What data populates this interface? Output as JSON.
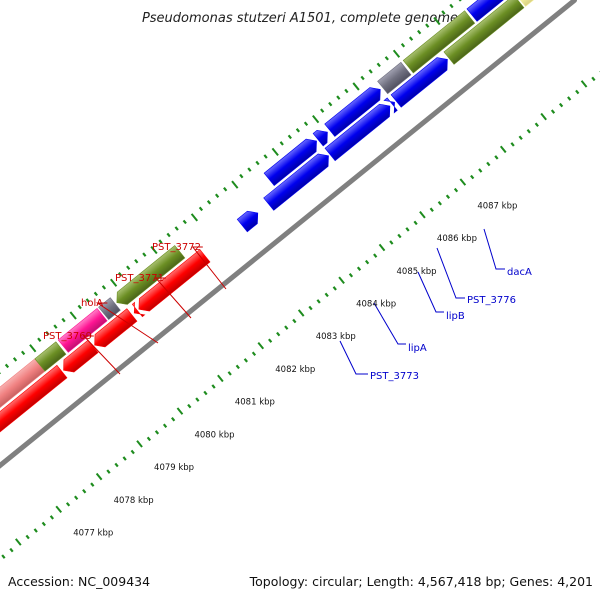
{
  "title": "Pseudomonas stutzeri A1501, complete genome",
  "footer": {
    "accession": "Accession: NC_009434",
    "summary": "Topology: circular; Length: 4,567,418 bp; Genes: 4,201"
  },
  "colors": {
    "backbone": "#808080",
    "ticks": "#1e8c1e",
    "red": "#ff0000",
    "pink": "#f08080",
    "magenta": "#ff1493",
    "olive": "#6b8e23",
    "blue": "#0000ee",
    "gray": "#707080",
    "pale-yellow": "#f5f0a0",
    "label-red": "#cc0000",
    "label-blue": "#0000cc"
  },
  "kbp_ticks": [
    "4077 kbp",
    "4078 kbp",
    "4079 kbp",
    "4080 kbp",
    "4081 kbp",
    "4082 kbp",
    "4083 kbp",
    "4084 kbp",
    "4085 kbp",
    "4086 kbp",
    "4087 kbp"
  ],
  "gene_labels": {
    "reverse": [
      "PST_3769",
      "holA",
      "PST_3771",
      "PST_3772"
    ],
    "forward": [
      "PST_3773",
      "lipA",
      "lipB",
      "PST_3776",
      "dacA"
    ]
  }
}
